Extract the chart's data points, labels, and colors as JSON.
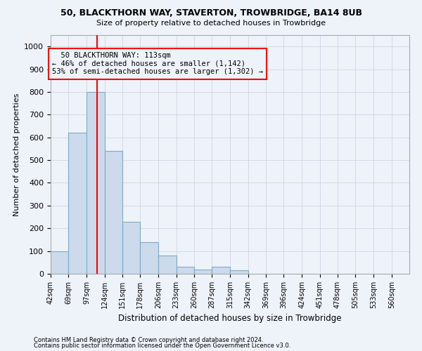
{
  "title1": "50, BLACKTHORN WAY, STAVERTON, TROWBRIDGE, BA14 8UB",
  "title2": "Size of property relative to detached houses in Trowbridge",
  "xlabel": "Distribution of detached houses by size in Trowbridge",
  "ylabel": "Number of detached properties",
  "footnote1": "Contains HM Land Registry data © Crown copyright and database right 2024.",
  "footnote2": "Contains public sector information licensed under the Open Government Licence v3.0.",
  "bin_edges": [
    42,
    69,
    97,
    124,
    151,
    178,
    206,
    233,
    260,
    287,
    315,
    342,
    369,
    396,
    424,
    451,
    478,
    505,
    533,
    560,
    587
  ],
  "bar_heights": [
    100,
    620,
    800,
    540,
    230,
    140,
    80,
    30,
    20,
    30,
    15,
    0,
    0,
    0,
    0,
    0,
    0,
    0,
    0,
    0
  ],
  "bar_color": "#ccdaeb",
  "bar_edge_color": "#7baac8",
  "bar_linewidth": 0.8,
  "grid_color": "#c8d0de",
  "property_size": 113,
  "vline_color": "red",
  "annotation_line1": "50 BLACKTHORN WAY: 113sqm",
  "annotation_line2": "← 46% of detached houses are smaller (1,142)",
  "annotation_line3": "53% of semi-detached houses are larger (1,302) →",
  "annotation_box_color": "red",
  "ylim": [
    0,
    1050
  ],
  "yticks": [
    0,
    100,
    200,
    300,
    400,
    500,
    600,
    700,
    800,
    900,
    1000
  ],
  "bg_color": "#eef3fa"
}
